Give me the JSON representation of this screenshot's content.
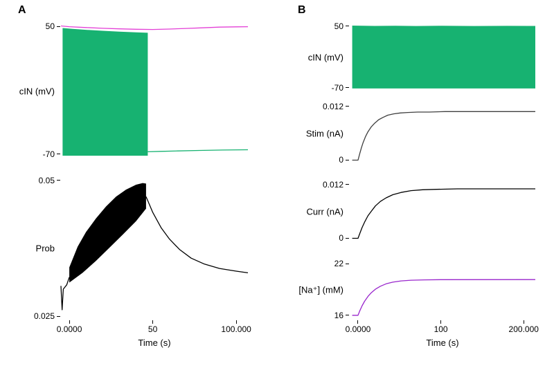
{
  "figure": {
    "panel_a_label": "A",
    "panel_b_label": "B",
    "background": "#ffffff",
    "colors": {
      "membrane_green": "#17b271",
      "envelope_magenta": "#e33fd6",
      "stim_gray": "#3f3f3f",
      "curr_black": "#000000",
      "sodium_purple": "#9926cc",
      "prob_black": "#000000"
    }
  },
  "chart_data": [
    {
      "id": "panel-a-cin",
      "panel": "A",
      "type": "line",
      "title": "",
      "ylabel": "cIN (mV)",
      "xlabel": "",
      "xlim": [
        -5,
        107
      ],
      "ylim": [
        -76,
        54
      ],
      "yticks": [
        {
          "v": 50,
          "label": "50"
        },
        {
          "v": -70,
          "label": "-70"
        }
      ],
      "xticks": [],
      "fills": [
        {
          "name": "cin-spiking-envelope-fill",
          "color": "#17b271",
          "upper": [
            [
              -4,
              48.5
            ],
            [
              2,
              47.6
            ],
            [
              10,
              46.8
            ],
            [
              20,
              45.9
            ],
            [
              30,
              45.1
            ],
            [
              40,
              44.4
            ],
            [
              47,
              44.0
            ]
          ],
          "lower": [
            [
              -4,
              -71.5
            ],
            [
              47,
              -71.5
            ]
          ]
        }
      ],
      "series": [
        {
          "name": "cin-top-envelope-trace",
          "color": "#e33fd6",
          "points": [
            [
              -5,
              50.4
            ],
            [
              0,
              49.7
            ],
            [
              10,
              48.9
            ],
            [
              20,
              48.2
            ],
            [
              30,
              47.7
            ],
            [
              40,
              47.3
            ],
            [
              50,
              47.1
            ],
            [
              60,
              47.5
            ],
            [
              70,
              48.1
            ],
            [
              80,
              48.7
            ],
            [
              90,
              49.3
            ],
            [
              100,
              49.6
            ],
            [
              107,
              49.7
            ]
          ]
        },
        {
          "name": "cin-resting-trace",
          "color": "#17b271",
          "points": [
            [
              47,
              -67.8
            ],
            [
              55,
              -67.4
            ],
            [
              65,
              -67.0
            ],
            [
              78,
              -66.6
            ],
            [
              92,
              -66.2
            ],
            [
              107,
              -65.9
            ]
          ]
        }
      ]
    },
    {
      "id": "panel-a-prob",
      "panel": "A",
      "type": "line",
      "title": "",
      "ylabel": "Prob",
      "xlabel": "Time (s)",
      "xlim": [
        -5,
        107
      ],
      "ylim": [
        0.0244,
        0.0506
      ],
      "yticks": [
        {
          "v": 0.05,
          "label": "0.05"
        },
        {
          "v": 0.025,
          "label": "0.025"
        }
      ],
      "xticks": [
        {
          "v": 0,
          "label": "0.0000"
        },
        {
          "v": 50,
          "label": "50"
        },
        {
          "v": 100,
          "label": "100.000"
        }
      ],
      "fills": [
        {
          "name": "prob-oscillation-envelope-fill",
          "color": "#000000",
          "upper": [
            [
              0,
              0.034
            ],
            [
              5,
              0.0378
            ],
            [
              10,
              0.0405
            ],
            [
              16,
              0.043
            ],
            [
              22,
              0.0452
            ],
            [
              28,
              0.047
            ],
            [
              34,
              0.0483
            ],
            [
              40,
              0.0492
            ],
            [
              44,
              0.0495
            ],
            [
              46,
              0.0494
            ]
          ],
          "lower": [
            [
              0,
              0.0312
            ],
            [
              8,
              0.033
            ],
            [
              16,
              0.0352
            ],
            [
              24,
              0.0376
            ],
            [
              32,
              0.04
            ],
            [
              40,
              0.0425
            ],
            [
              46,
              0.0448
            ]
          ]
        }
      ],
      "series": [
        {
          "name": "prob-onset-trace",
          "color": "#000000",
          "points": [
            [
              -5,
              0.0306
            ],
            [
              -4.3,
              0.0262
            ],
            [
              -3.6,
              0.03
            ],
            [
              -1.5,
              0.0308
            ],
            [
              0,
              0.0322
            ]
          ]
        },
        {
          "name": "prob-decay-trace",
          "color": "#000000",
          "points": [
            [
              46,
              0.047
            ],
            [
              50,
              0.0441
            ],
            [
              55,
              0.0413
            ],
            [
              60,
              0.0392
            ],
            [
              66,
              0.0373
            ],
            [
              73,
              0.0357
            ],
            [
              81,
              0.0346
            ],
            [
              90,
              0.0338
            ],
            [
              100,
              0.0333
            ],
            [
              107,
              0.033
            ]
          ]
        }
      ]
    },
    {
      "id": "panel-b-cin",
      "panel": "B",
      "type": "line",
      "title": "",
      "ylabel": "cIN (mV)",
      "xlabel": "",
      "xlim": [
        -10,
        214
      ],
      "ylim": [
        -77,
        55
      ],
      "yticks": [
        {
          "v": 50,
          "label": "50"
        },
        {
          "v": -70,
          "label": "-70"
        }
      ],
      "xticks": [],
      "fills": [
        {
          "name": "cin-spiking-envelope-fill",
          "color": "#17b271",
          "upper": [
            [
              -7,
              51
            ],
            [
              20,
              50.3
            ],
            [
              45,
              50.7
            ],
            [
              70,
              50.1
            ],
            [
              100,
              50.5
            ],
            [
              140,
              50.2
            ],
            [
              180,
              50.4
            ],
            [
              214,
              50.3
            ]
          ],
          "lower": [
            [
              -7,
              -71.5
            ],
            [
              214,
              -71.5
            ]
          ]
        }
      ],
      "series": []
    },
    {
      "id": "panel-b-stim",
      "panel": "B",
      "type": "line",
      "title": "",
      "ylabel": "Stim (nA)",
      "xlabel": "",
      "xlim": [
        -10,
        214
      ],
      "ylim": [
        -0.0007,
        0.0127
      ],
      "yticks": [
        {
          "v": 0.012,
          "label": "0.012"
        },
        {
          "v": 0,
          "label": "0"
        }
      ],
      "xticks": [],
      "fills": [],
      "series": [
        {
          "name": "stim-trace",
          "color": "#3f3f3f",
          "points": [
            [
              -7,
              0
            ],
            [
              0,
              0
            ],
            [
              2,
              0.0014
            ],
            [
              4,
              0.0027
            ],
            [
              6,
              0.0038
            ],
            [
              9,
              0.0052
            ],
            [
              12,
              0.0063
            ],
            [
              16,
              0.0074
            ],
            [
              20,
              0.0082
            ],
            [
              25,
              0.009
            ],
            [
              30,
              0.0095
            ],
            [
              36,
              0.01
            ],
            [
              43,
              0.0103
            ],
            [
              51,
              0.0105
            ],
            [
              60,
              0.0106
            ],
            [
              72,
              0.0107
            ],
            [
              86,
              0.0107
            ],
            [
              105,
              0.0108
            ],
            [
              214,
              0.0108
            ]
          ]
        }
      ]
    },
    {
      "id": "panel-b-curr",
      "panel": "B",
      "type": "line",
      "title": "",
      "ylabel": "Curr (nA)",
      "xlabel": "",
      "xlim": [
        -10,
        214
      ],
      "ylim": [
        -0.0007,
        0.0127
      ],
      "yticks": [
        {
          "v": 0.012,
          "label": "0.012"
        },
        {
          "v": 0,
          "label": "0"
        }
      ],
      "xticks": [],
      "fills": [],
      "series": [
        {
          "name": "curr-trace",
          "color": "#000000",
          "points": [
            [
              -7,
              0
            ],
            [
              0,
              0
            ],
            [
              2,
              0.001
            ],
            [
              5,
              0.0024
            ],
            [
              8,
              0.0036
            ],
            [
              12,
              0.005
            ],
            [
              16,
              0.006
            ],
            [
              21,
              0.0072
            ],
            [
              27,
              0.0082
            ],
            [
              34,
              0.009
            ],
            [
              42,
              0.0097
            ],
            [
              52,
              0.0102
            ],
            [
              64,
              0.0106
            ],
            [
              78,
              0.0108
            ],
            [
              95,
              0.0109
            ],
            [
              120,
              0.011
            ],
            [
              214,
              0.011
            ]
          ]
        }
      ]
    },
    {
      "id": "panel-b-na",
      "panel": "B",
      "type": "line",
      "title": "",
      "ylabel": "[Na⁺] (mM)",
      "xlabel": "Time (s)",
      "xlim": [
        -10,
        214
      ],
      "ylim": [
        15.5,
        22.5
      ],
      "yticks": [
        {
          "v": 22,
          "label": "22"
        },
        {
          "v": 16,
          "label": "16"
        }
      ],
      "xticks": [
        {
          "v": 0,
          "label": "0.0000"
        },
        {
          "v": 100,
          "label": "100"
        },
        {
          "v": 200,
          "label": "200.000"
        }
      ],
      "fills": [],
      "series": [
        {
          "name": "sodium-concentration-trace",
          "color": "#9926cc",
          "points": [
            [
              -7,
              16
            ],
            [
              0,
              16
            ],
            [
              2,
              16.49
            ],
            [
              5,
              17.11
            ],
            [
              8,
              17.63
            ],
            [
              12,
              18.19
            ],
            [
              16,
              18.62
            ],
            [
              21,
              19.03
            ],
            [
              27,
              19.38
            ],
            [
              34,
              19.66
            ],
            [
              42,
              19.85
            ],
            [
              52,
              20.0
            ],
            [
              64,
              20.08
            ],
            [
              80,
              20.12
            ],
            [
              100,
              20.14
            ],
            [
              214,
              20.15
            ]
          ]
        }
      ]
    }
  ]
}
